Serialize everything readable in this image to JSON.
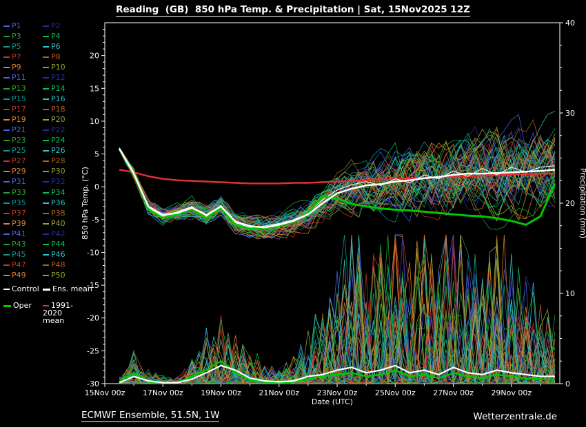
{
  "title": "Reading  (GB)  850 hPa Temp. & Precipitation | Sat, 15Nov2025 12Z",
  "footer": {
    "left": "ECMWF Ensemble, 51.5N, 1W",
    "right": "Wetterzentrale.de"
  },
  "legend": {
    "members": [
      "P1",
      "P2",
      "P3",
      "P4",
      "P5",
      "P6",
      "P7",
      "P8",
      "P9",
      "P10",
      "P11",
      "P12",
      "P13",
      "P14",
      "P15",
      "P16",
      "P17",
      "P18",
      "P19",
      "P20",
      "P21",
      "P22",
      "P23",
      "P24",
      "P25",
      "P26",
      "P27",
      "P28",
      "P29",
      "P30",
      "P31",
      "P32",
      "P33",
      "P34",
      "P35",
      "P36",
      "P37",
      "P38",
      "P39",
      "P40",
      "P41",
      "P42",
      "P43",
      "P44",
      "P45",
      "P46",
      "P47",
      "P48",
      "P49",
      "P50"
    ],
    "palette": [
      "#4a5fe0",
      "#232f9b",
      "#2aa12e",
      "#00c455",
      "#0f9a8c",
      "#33c2c2",
      "#c23424",
      "#b06020",
      "#df8030",
      "#97a62e"
    ],
    "special": [
      {
        "label": "Control",
        "color": "#ffffff"
      },
      {
        "label": "Ens. mean",
        "color": "#ffffff"
      },
      {
        "label": "Oper",
        "color": "#00c800"
      },
      {
        "label": "1991-2020 mean",
        "color": "#e23030"
      }
    ]
  },
  "chart_data": {
    "type": "line",
    "title": "Reading  (GB)  850 hPa Temp. & Precipitation | Sat, 15Nov2025 12Z",
    "x_axis": {
      "label": "Date (UTC)",
      "min_hour": 0,
      "max_hour": 376,
      "tick_hours": [
        0,
        48,
        96,
        144,
        192,
        240,
        288,
        336
      ],
      "tick_labels": [
        "15Nov 00z",
        "17Nov 00z",
        "19Nov 00z",
        "21Nov 00z",
        "23Nov 00z",
        "25Nov 00z",
        "27Nov 00z",
        "29Nov 00z"
      ],
      "minor_tick_step_hours": 24
    },
    "y_left": {
      "label": "850 hPa Temp. (°C)",
      "min": -30,
      "max": 25,
      "ticks": [
        -30,
        -25,
        -20,
        -15,
        -10,
        -5,
        0,
        5,
        10,
        15,
        20
      ]
    },
    "y_right": {
      "label": "Precipitation (mm)",
      "min": 0,
      "max": 40,
      "ticks": [
        0,
        10,
        20,
        30,
        40
      ]
    },
    "x_hours": [
      12,
      24,
      36,
      48,
      60,
      72,
      84,
      96,
      108,
      120,
      132,
      144,
      156,
      168,
      180,
      192,
      204,
      216,
      228,
      240,
      252,
      264,
      276,
      288,
      300,
      312,
      324,
      336,
      348,
      360,
      372
    ],
    "series": {
      "ens_mean_temp": [
        5.8,
        2.0,
        -3.0,
        -4.3,
        -4.0,
        -3.2,
        -4.3,
        -3.0,
        -5.3,
        -6.0,
        -6.2,
        -5.8,
        -5.2,
        -4.2,
        -2.5,
        -1.0,
        -0.3,
        0.2,
        0.4,
        0.8,
        1.0,
        1.3,
        1.5,
        1.8,
        2.0,
        2.0,
        2.1,
        2.2,
        2.3,
        2.4,
        2.6
      ],
      "control_temp": [
        5.9,
        2.2,
        -3.2,
        -4.5,
        -3.8,
        -3.0,
        -4.5,
        -2.8,
        -5.5,
        -6.2,
        -6.0,
        -5.6,
        -5.0,
        -4.0,
        -2.0,
        -0.5,
        0.3,
        0.8,
        0.2,
        1.2,
        0.6,
        1.8,
        1.2,
        2.4,
        1.6,
        2.8,
        1.8,
        3.0,
        2.2,
        3.0,
        3.2
      ],
      "oper_temp": [
        5.8,
        1.8,
        -3.4,
        -4.8,
        -4.2,
        -3.4,
        -4.8,
        -3.2,
        -5.8,
        -6.4,
        -6.3,
        -5.9,
        -5.3,
        -4.0,
        -1.5,
        -1.8,
        -2.6,
        -3.0,
        -3.3,
        -3.5,
        -3.6,
        -3.8,
        -4.0,
        -4.2,
        -4.4,
        -4.5,
        -4.8,
        -5.2,
        -5.8,
        -4.5,
        0.5
      ],
      "climate_mean_temp": [
        2.6,
        2.2,
        1.6,
        1.2,
        1.0,
        0.9,
        0.8,
        0.7,
        0.6,
        0.5,
        0.5,
        0.5,
        0.6,
        0.6,
        0.7,
        0.8,
        0.9,
        1.0,
        1.1,
        1.2,
        1.3,
        1.3,
        1.4,
        1.5,
        1.6,
        1.7,
        1.8,
        1.9,
        1.9,
        2.0,
        2.0
      ],
      "spread_temp": [
        0.3,
        0.8,
        1.0,
        1.2,
        1.3,
        1.5,
        1.5,
        1.6,
        1.6,
        1.7,
        1.8,
        1.9,
        2.0,
        2.2,
        2.5,
        3.0,
        3.5,
        4.0,
        4.5,
        5.0,
        5.2,
        5.5,
        5.8,
        6.0,
        6.2,
        6.3,
        6.4,
        6.5,
        6.5,
        6.6,
        6.6
      ],
      "ens_mean_precip": [
        0.1,
        0.8,
        0.3,
        0.1,
        0.1,
        0.5,
        1.2,
        2.0,
        1.5,
        0.6,
        0.3,
        0.2,
        0.3,
        0.8,
        1.0,
        1.5,
        1.8,
        1.2,
        1.5,
        2.0,
        1.2,
        1.5,
        1.0,
        1.8,
        1.2,
        1.0,
        1.5,
        1.2,
        1.0,
        0.8,
        0.8
      ],
      "oper_precip": [
        0.2,
        1.2,
        0.2,
        0.1,
        0.1,
        0.8,
        1.5,
        2.5,
        1.2,
        0.4,
        0.2,
        0.1,
        0.2,
        0.5,
        0.8,
        1.0,
        1.2,
        0.8,
        1.0,
        1.5,
        0.8,
        1.0,
        0.6,
        1.2,
        0.8,
        0.6,
        1.0,
        0.8,
        0.6,
        0.5,
        0.4
      ],
      "max_precip": [
        0.5,
        2.5,
        1.0,
        0.5,
        0.5,
        2.0,
        4.0,
        5.0,
        4.0,
        2.0,
        1.5,
        1.0,
        2.0,
        4.0,
        6.0,
        9.0,
        12.0,
        8.0,
        10.0,
        15.0,
        9.0,
        11.0,
        8.0,
        14.0,
        10.0,
        8.0,
        12.0,
        9.0,
        8.0,
        6.0,
        5.0
      ]
    }
  }
}
